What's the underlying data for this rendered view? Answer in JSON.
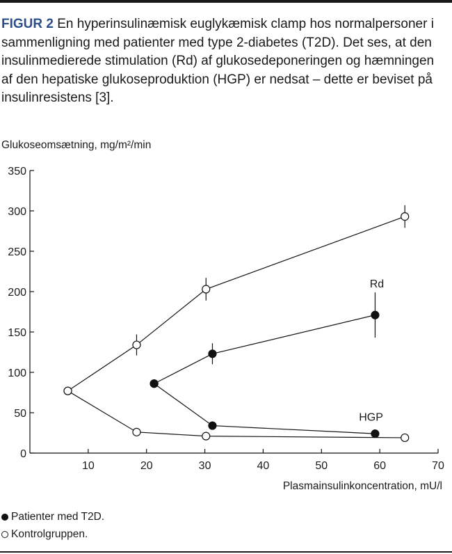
{
  "caption": {
    "label": "FIGUR 2",
    "text": "En hyperinsulinæmisk euglykæmisk clamp hos normalpersoner i sammenligning med patienter med type 2-diabetes (T2D). Det ses, at den insulinmedierede stimulation (Rd) af glukosedeponeringen og hæmningen af den hepatiske glukoseproduktion (HGP) er nedsat – dette er beviset på insulinresistens [3]."
  },
  "legend": {
    "t2d": "Patienter med T2D.",
    "control": "Kontrolgruppen."
  },
  "chart_data": {
    "type": "line",
    "xlabel": "Plasmainsulinkoncentration, mU/l",
    "ylabel": "Glukoseomsætning, mg/m²/min",
    "xlim": [
      0,
      70
    ],
    "ylim": [
      0,
      350
    ],
    "xticks": [
      10,
      20,
      30,
      40,
      50,
      60,
      70
    ],
    "yticks": [
      0,
      50,
      100,
      150,
      200,
      250,
      300,
      350
    ],
    "grid": false,
    "annotations": [
      {
        "text": "Rd",
        "x": 59.5,
        "y": 205
      },
      {
        "text": "HGP",
        "x": 58.5,
        "y": 40
      }
    ],
    "series": [
      {
        "group": "control",
        "curve": "Rd",
        "marker": "open",
        "color": "#111111",
        "points": [
          {
            "x": 6.5,
            "y": 77
          },
          {
            "x": 18.3,
            "y": 134,
            "err": 13
          },
          {
            "x": 30.2,
            "y": 203,
            "err": 14
          },
          {
            "x": 64.3,
            "y": 293,
            "err": 14
          }
        ]
      },
      {
        "group": "control",
        "curve": "HGP",
        "marker": "open",
        "color": "#111111",
        "points": [
          {
            "x": 6.5,
            "y": 77
          },
          {
            "x": 18.3,
            "y": 26
          },
          {
            "x": 30.2,
            "y": 21
          },
          {
            "x": 64.3,
            "y": 19
          }
        ]
      },
      {
        "group": "t2d",
        "curve": "Rd",
        "marker": "filled",
        "color": "#111111",
        "points": [
          {
            "x": 21.3,
            "y": 86
          },
          {
            "x": 31.3,
            "y": 123,
            "err": 13
          },
          {
            "x": 59.2,
            "y": 171,
            "err": 28
          }
        ]
      },
      {
        "group": "t2d",
        "curve": "HGP",
        "marker": "filled",
        "color": "#111111",
        "points": [
          {
            "x": 21.3,
            "y": 86
          },
          {
            "x": 31.3,
            "y": 34
          },
          {
            "x": 59.2,
            "y": 24
          }
        ]
      }
    ]
  }
}
